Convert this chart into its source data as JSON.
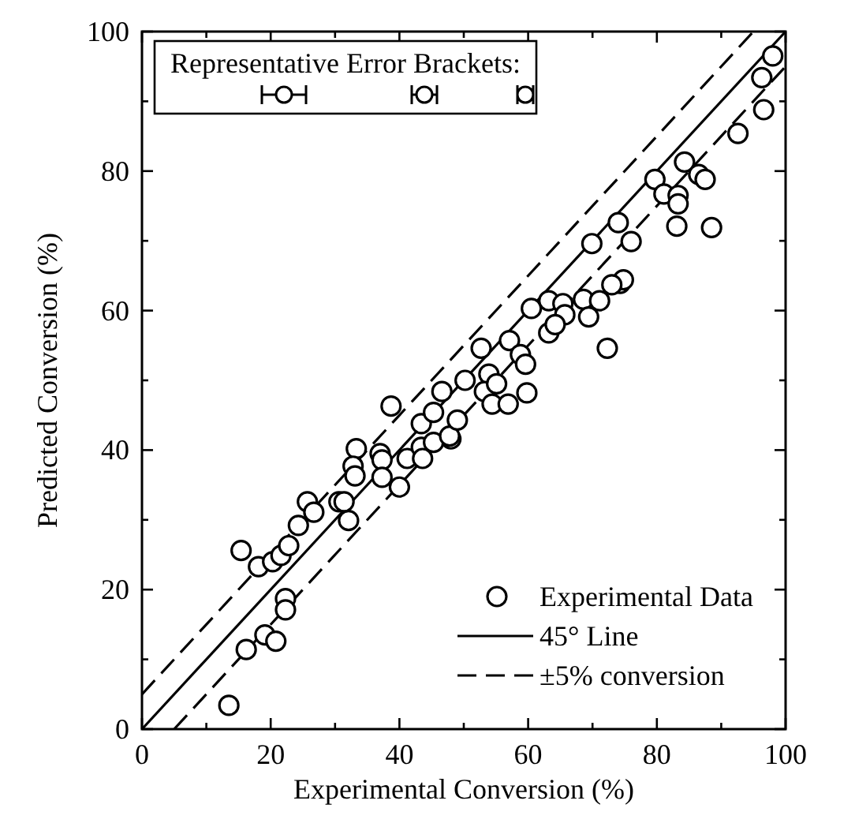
{
  "chart_data": {
    "type": "scatter",
    "xlabel": "Experimental Conversion (%)",
    "ylabel": "Predicted Conversion (%)",
    "annotations": [
      "Representative Error Brackets:"
    ],
    "xlim": [
      0,
      100
    ],
    "ylim": [
      0,
      100
    ],
    "xticks": [
      0,
      {
        "value": 10,
        "label": null
      },
      20,
      {
        "value": 30,
        "label": null
      },
      40,
      {
        "value": 50,
        "label": null
      },
      60,
      {
        "value": 70,
        "label": null
      },
      80,
      {
        "value": 90,
        "label": null
      },
      100
    ],
    "yticks": [
      0,
      {
        "value": 10,
        "label": null
      },
      20,
      {
        "value": 30,
        "label": null
      },
      40,
      {
        "value": 50,
        "label": null
      },
      60,
      {
        "value": 70,
        "label": null
      },
      80,
      {
        "value": 90,
        "label": null
      },
      100
    ],
    "grid": false,
    "legend": "bottom right",
    "series": [
      {
        "name": "Experimental Data",
        "type": "scatter",
        "marker": "circle",
        "color": "#000000",
        "x": [
          15.4,
          18.1,
          20.3,
          21.6,
          22.8,
          24.3,
          25.7,
          26.7,
          30.6,
          32.1,
          31.4,
          33.3,
          32.8,
          33.1,
          37,
          37.3,
          37.3,
          40,
          41.2,
          43.4,
          43.6,
          48,
          22.3,
          22.3,
          19.1,
          20.8,
          16.2,
          13.5,
          38.7,
          43.4,
          45.3,
          45.3,
          46.6,
          47.8,
          49,
          50.2,
          52.7,
          53.9,
          53.2,
          54.4,
          55.1,
          56.9,
          57.1,
          58.8,
          59.6,
          59.8,
          60.5,
          63.2,
          65.4,
          65.7,
          63.2,
          64.2,
          68.6,
          69.4,
          72.3,
          71.1,
          74.3,
          98,
          96.3,
          96.6,
          92.6,
          84.3,
          86.5,
          87.5,
          79.7,
          81.1,
          83.3,
          83.3,
          83.1,
          88.5,
          74,
          76,
          69.9,
          74.8,
          73
        ],
        "values": [
          25.6,
          23.3,
          24,
          24.9,
          26.3,
          29.2,
          32.6,
          31.1,
          32.6,
          29.9,
          32.6,
          40.2,
          37.7,
          36.3,
          39.5,
          38.6,
          36.1,
          34.7,
          38.8,
          40.4,
          38.8,
          41.6,
          18.7,
          17.1,
          13.5,
          12.6,
          11.4,
          3.4,
          46.3,
          43.8,
          45.4,
          41.1,
          48.4,
          42,
          44.3,
          50,
          54.6,
          50.9,
          48.4,
          46.6,
          49.5,
          46.6,
          55.7,
          53.7,
          52.3,
          48.2,
          60.3,
          61.4,
          61,
          59.4,
          56.8,
          58,
          61.6,
          59.1,
          54.6,
          61.4,
          63.9,
          96.5,
          93.4,
          88.8,
          85.4,
          81.3,
          79.5,
          78.8,
          78.8,
          76.7,
          76.5,
          75.3,
          72.1,
          71.9,
          72.6,
          69.9,
          69.6,
          64.4,
          63.7
        ]
      },
      {
        "name": "45° Line",
        "type": "line",
        "color": "#000000",
        "line_style": "solid",
        "marker": "none",
        "x": [
          0,
          100
        ],
        "values": [
          0,
          100
        ]
      },
      {
        "name": "±5% conversion",
        "type": "line",
        "color": "#000000",
        "line_style": "dashed",
        "marker": "none",
        "x": [
          0,
          95
        ],
        "values": [
          5,
          100
        ]
      },
      {
        "type": "line",
        "color": "#000000",
        "line_style": "dashed",
        "marker": "none",
        "x": [
          5,
          100
        ],
        "values": [
          0,
          95
        ]
      }
    ]
  }
}
